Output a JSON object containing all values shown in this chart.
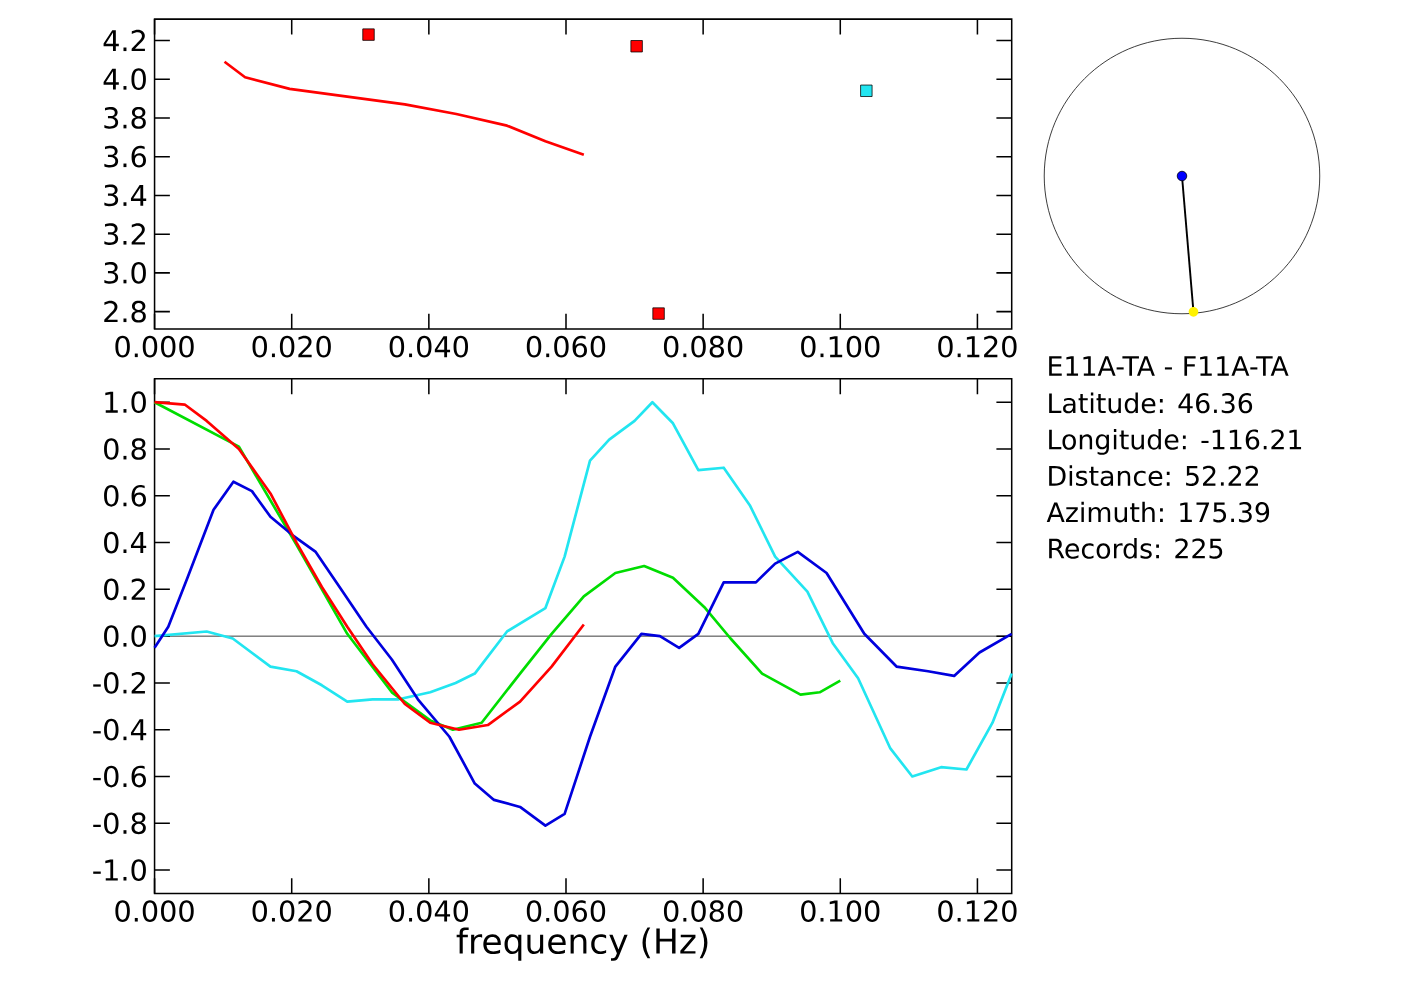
{
  "chart_data": [
    {
      "type": "line",
      "xlim": [
        0,
        0.125
      ],
      "ylim": [
        2.71,
        4.31
      ],
      "xticks": [
        {
          "value": 0,
          "label": "0.000"
        },
        {
          "value": 0.02,
          "label": "0.020"
        },
        {
          "value": 0.04,
          "label": "0.040"
        },
        {
          "value": 0.06,
          "label": "0.060"
        },
        {
          "value": 0.08,
          "label": "0.080"
        },
        {
          "value": 0.1,
          "label": "0.100"
        },
        {
          "value": 0.12,
          "label": "0.120"
        }
      ],
      "yticks": [
        {
          "value": 2.8,
          "label": "2.8"
        },
        {
          "value": 3.0,
          "label": "3.0"
        },
        {
          "value": 3.2,
          "label": "3.2"
        },
        {
          "value": 3.4,
          "label": "3.4"
        },
        {
          "value": 3.6,
          "label": "3.6"
        },
        {
          "value": 3.8,
          "label": "3.8"
        },
        {
          "value": 4.0,
          "label": "4.0"
        },
        {
          "value": 4.2,
          "label": "4.2"
        }
      ],
      "series": [
        {
          "type": "line",
          "color": "#ff0000",
          "x": [
            0.0102,
            0.0132,
            0.0197,
            0.0281,
            0.0365,
            0.044,
            0.0514,
            0.057,
            0.0626
          ],
          "values": [
            4.09,
            4.01,
            3.95,
            3.91,
            3.87,
            3.82,
            3.76,
            3.68,
            3.61
          ]
        },
        {
          "type": "scatter",
          "marker": "square",
          "x": [
            0.0312,
            0.0703,
            0.0735,
            0.1038
          ],
          "values": [
            4.23,
            4.17,
            2.79,
            3.94
          ],
          "colors": [
            "#ff0000",
            "#ff0000",
            "#ff0000",
            "#22e5f0"
          ]
        }
      ]
    },
    {
      "type": "line",
      "xlabel": "frequency (Hz)",
      "xlim": [
        0,
        0.125
      ],
      "ylim": [
        -1.1,
        1.1
      ],
      "xticks": [
        {
          "value": 0,
          "label": "0.000"
        },
        {
          "value": 0.02,
          "label": "0.020"
        },
        {
          "value": 0.04,
          "label": "0.040"
        },
        {
          "value": 0.06,
          "label": "0.060"
        },
        {
          "value": 0.08,
          "label": "0.080"
        },
        {
          "value": 0.1,
          "label": "0.100"
        },
        {
          "value": 0.12,
          "label": "0.120"
        }
      ],
      "yticks": [
        {
          "value": -1.0,
          "label": "-1.0"
        },
        {
          "value": -0.8,
          "label": "-0.8"
        },
        {
          "value": -0.6,
          "label": "-0.6"
        },
        {
          "value": -0.4,
          "label": "-0.4"
        },
        {
          "value": -0.2,
          "label": "-0.2"
        },
        {
          "value": 0.0,
          "label": "0.0"
        },
        {
          "value": 0.2,
          "label": "0.2"
        },
        {
          "value": 0.4,
          "label": "0.4"
        },
        {
          "value": 0.6,
          "label": "0.6"
        },
        {
          "value": 0.8,
          "label": "0.8"
        },
        {
          "value": 1.0,
          "label": "1.0"
        }
      ],
      "ref_lines": [
        {
          "axis": "y",
          "value": 0,
          "color": "#000000"
        }
      ],
      "series": [
        {
          "color": "#22e5f0",
          "x": [
            0,
            0.0076,
            0.0114,
            0.0169,
            0.0207,
            0.0244,
            0.0281,
            0.0318,
            0.0356,
            0.0402,
            0.0439,
            0.0467,
            0.0514,
            0.057,
            0.0598,
            0.0635,
            0.0663,
            0.07,
            0.0726,
            0.0756,
            0.0793,
            0.083,
            0.0868,
            0.0905,
            0.0952,
            0.0989,
            0.1026,
            0.1073,
            0.1105,
            0.1147,
            0.1184,
            0.1222,
            0.125
          ],
          "values": [
            0.0,
            0.02,
            -0.01,
            -0.13,
            -0.15,
            -0.21,
            -0.28,
            -0.27,
            -0.27,
            -0.24,
            -0.2,
            -0.16,
            0.02,
            0.12,
            0.34,
            0.75,
            0.84,
            0.92,
            1.0,
            0.91,
            0.71,
            0.72,
            0.56,
            0.34,
            0.19,
            -0.03,
            -0.18,
            -0.48,
            -0.6,
            -0.56,
            -0.57,
            -0.37,
            -0.16
          ]
        },
        {
          "color": "#00dd00",
          "x": [
            0,
            0.0123,
            0.0207,
            0.0281,
            0.0346,
            0.0402,
            0.0435,
            0.0477,
            0.0533,
            0.0579,
            0.0626,
            0.0672,
            0.0714,
            0.0756,
            0.0803,
            0.084,
            0.0886,
            0.0942,
            0.097,
            0.1
          ],
          "values": [
            1.0,
            0.81,
            0.39,
            0.01,
            -0.24,
            -0.36,
            -0.4,
            -0.37,
            -0.16,
            0.01,
            0.17,
            0.27,
            0.3,
            0.25,
            0.12,
            -0.01,
            -0.16,
            -0.25,
            -0.24,
            -0.19
          ]
        },
        {
          "color": "#0000dd",
          "x": [
            0,
            0.002,
            0.0048,
            0.0086,
            0.0115,
            0.0142,
            0.0169,
            0.0202,
            0.0235,
            0.0272,
            0.0309,
            0.0346,
            0.0384,
            0.043,
            0.0467,
            0.0495,
            0.0533,
            0.057,
            0.0598,
            0.0635,
            0.0672,
            0.071,
            0.0737,
            0.0765,
            0.0793,
            0.083,
            0.0877,
            0.0905,
            0.0938,
            0.098,
            0.1035,
            0.1082,
            0.1128,
            0.1166,
            0.1203,
            0.125
          ],
          "values": [
            -0.05,
            0.04,
            0.25,
            0.54,
            0.66,
            0.62,
            0.51,
            0.43,
            0.36,
            0.2,
            0.04,
            -0.1,
            -0.27,
            -0.43,
            -0.63,
            -0.7,
            -0.73,
            -0.81,
            -0.76,
            -0.43,
            -0.13,
            0.01,
            0.0,
            -0.05,
            0.01,
            0.23,
            0.23,
            0.31,
            0.36,
            0.27,
            0.01,
            -0.13,
            -0.15,
            -0.17,
            -0.07,
            0.01
          ]
        },
        {
          "color": "#ff0000",
          "x": [
            0,
            0.0044,
            0.0076,
            0.0123,
            0.0169,
            0.0207,
            0.0244,
            0.0281,
            0.0318,
            0.0365,
            0.0402,
            0.0444,
            0.0486,
            0.0533,
            0.0579,
            0.0626
          ],
          "values": [
            1.0,
            0.99,
            0.92,
            0.8,
            0.61,
            0.4,
            0.21,
            0.04,
            -0.12,
            -0.29,
            -0.37,
            -0.4,
            -0.38,
            -0.28,
            -0.13,
            0.05
          ]
        }
      ]
    },
    {
      "type": "other",
      "title": "E11A-TA - F11A-TA",
      "annotations": [
        "Latitude: 46.36",
        "Longitude: -116.21",
        "Distance: 52.22",
        "Azimuth: 175.39",
        "Records: 225"
      ]
    }
  ]
}
